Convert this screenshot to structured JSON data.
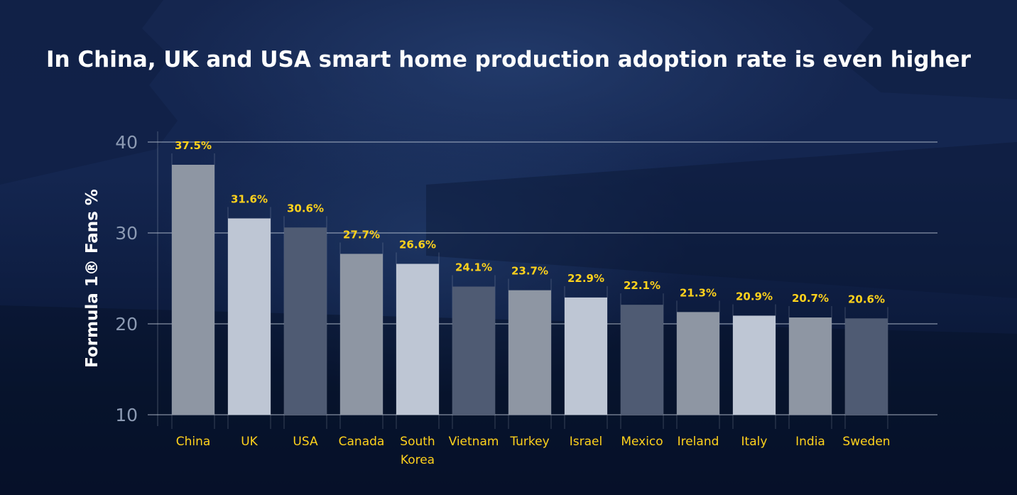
{
  "chart_data": {
    "type": "bar",
    "title": "In China, UK and USA smart home production adoption rate is even higher",
    "xlabel": "",
    "ylabel": "Formula 1® Fans %",
    "ylim": [
      10,
      40
    ],
    "yticks": [
      10,
      20,
      30,
      40
    ],
    "ytick_labels": [
      "10",
      "20",
      "30",
      "40"
    ],
    "grid": true,
    "categories": [
      "China",
      "UK",
      "USA",
      "Canada",
      "South Korea",
      "Vietnam",
      "Turkey",
      "Israel",
      "Mexico",
      "Ireland",
      "Italy",
      "India",
      "Sweden"
    ],
    "category_lines": [
      [
        "China"
      ],
      [
        "UK"
      ],
      [
        "USA"
      ],
      [
        "Canada"
      ],
      [
        "South",
        "Korea"
      ],
      [
        "Vietnam"
      ],
      [
        "Turkey"
      ],
      [
        "Israel"
      ],
      [
        "Mexico"
      ],
      [
        "Ireland"
      ],
      [
        "Italy"
      ],
      [
        "India"
      ],
      [
        "Sweden"
      ]
    ],
    "values": [
      37.5,
      31.6,
      30.6,
      27.7,
      26.6,
      24.1,
      23.7,
      22.9,
      22.1,
      21.3,
      20.9,
      20.7,
      20.6
    ],
    "data_labels": [
      "37.5%",
      "31.6%",
      "30.6%",
      "27.7%",
      "26.6%",
      "24.1%",
      "23.7%",
      "22.9%",
      "22.1%",
      "21.3%",
      "20.9%",
      "20.7%",
      "20.6%"
    ],
    "bar_colors": [
      "#8e96a3",
      "#bec6d4",
      "#4f5b73",
      "#8e96a3",
      "#bec6d4",
      "#4f5b73",
      "#8e96a3",
      "#bec6d4",
      "#4f5b73",
      "#8e96a3",
      "#bec6d4",
      "#8e96a3",
      "#4f5b73"
    ],
    "label_color": "#ffd21c",
    "legend": "none"
  }
}
